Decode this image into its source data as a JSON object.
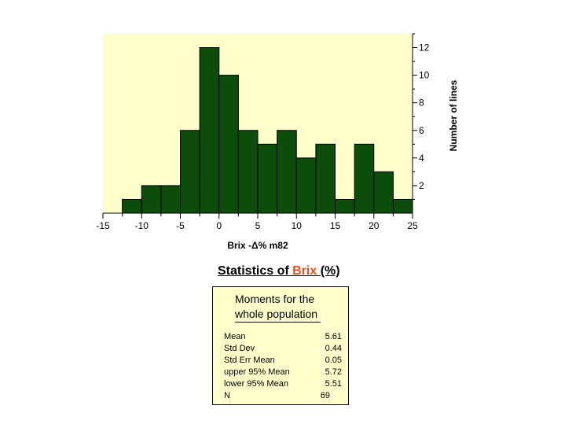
{
  "chart_data": {
    "type": "bar",
    "subtype": "histogram",
    "bin_width": 2.5,
    "bins": [
      {
        "start": -12.5,
        "end": -10,
        "count": 1
      },
      {
        "start": -10,
        "end": -7.5,
        "count": 2
      },
      {
        "start": -7.5,
        "end": -5,
        "count": 2
      },
      {
        "start": -5,
        "end": -2.5,
        "count": 6
      },
      {
        "start": -2.5,
        "end": 0,
        "count": 12
      },
      {
        "start": 0,
        "end": 2.5,
        "count": 10
      },
      {
        "start": 2.5,
        "end": 5,
        "count": 6
      },
      {
        "start": 5,
        "end": 7.5,
        "count": 5
      },
      {
        "start": 7.5,
        "end": 10,
        "count": 6
      },
      {
        "start": 10,
        "end": 12.5,
        "count": 4
      },
      {
        "start": 12.5,
        "end": 15,
        "count": 5
      },
      {
        "start": 15,
        "end": 17.5,
        "count": 1
      },
      {
        "start": 17.5,
        "end": 20,
        "count": 5
      },
      {
        "start": 20,
        "end": 22.5,
        "count": 3
      },
      {
        "start": 22.5,
        "end": 25,
        "count": 1
      }
    ],
    "xlabel": "Brix -Δ% m82",
    "ylabel": "Number of lines",
    "xlim": [
      -15,
      25
    ],
    "ylim": [
      0,
      13
    ],
    "x_ticks": [
      "-15",
      "-10",
      "-5",
      "0",
      "5",
      "10",
      "15",
      "20",
      "25"
    ],
    "y_ticks": [
      "2",
      "4",
      "6",
      "8",
      "10",
      "12"
    ],
    "y_axis_position": "right",
    "grid": false,
    "colors": {
      "bar": "#0c4d0c",
      "bar_edge": "#000000",
      "plot_bg": "#ffffcc"
    }
  },
  "stats": {
    "heading_prefix": "Statistics of ",
    "heading_highlight": "Brix",
    "heading_suffix": " (%)",
    "highlight_color": "#e8501f",
    "moments_line1": "Moments for the",
    "moments_line2": "whole population",
    "rows": [
      {
        "label": "Mean",
        "value": "5.61"
      },
      {
        "label": "Std Dev",
        "value": "0.44"
      },
      {
        "label": "Std Err Mean",
        "value": "0.05"
      },
      {
        "label": "upper 95% Mean",
        "value": "5.72"
      },
      {
        "label": "lower 95% Mean",
        "value": "5.51"
      },
      {
        "label": "N",
        "value": "69"
      }
    ]
  }
}
